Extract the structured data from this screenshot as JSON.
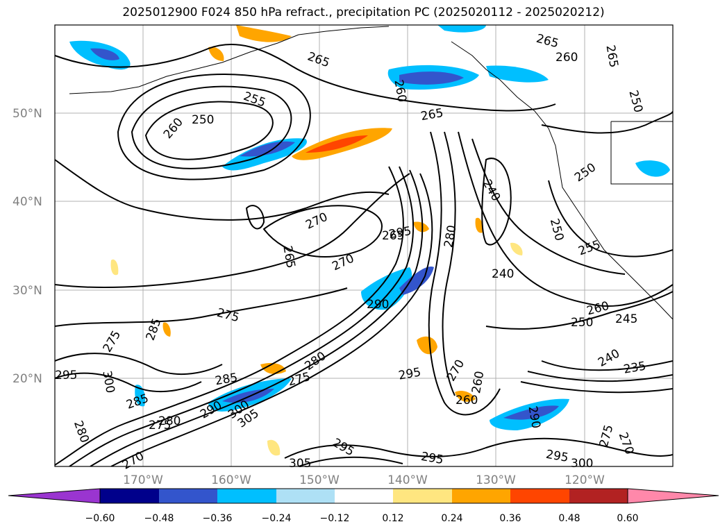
{
  "title": "2025012900 F024 850 hPa refract., precipitation PC (2025020112 - 2025020212)",
  "map": {
    "lon_range": [
      -180,
      -110
    ],
    "lat_range": [
      10,
      60
    ],
    "lat_ticks": [
      "50°N",
      "40°N",
      "30°N",
      "20°N"
    ],
    "lon_ticks": [
      "170°W",
      "160°W",
      "150°W",
      "140°W",
      "130°W",
      "120°W"
    ],
    "grid": true,
    "contour_labels": [
      "265",
      "260",
      "265",
      "255",
      "250",
      "260",
      "265",
      "250",
      "250",
      "240",
      "260",
      "265",
      "270",
      "265",
      "270",
      "275",
      "240",
      "280",
      "290",
      "275",
      "285",
      "300",
      "295",
      "280",
      "280",
      "275",
      "285",
      "275",
      "290",
      "280",
      "285",
      "300",
      "305",
      "270",
      "295",
      "295",
      "305",
      "295",
      "295",
      "270",
      "260",
      "260",
      "290",
      "255",
      "260",
      "250",
      "245",
      "240",
      "235",
      "275",
      "270",
      "295",
      "300",
      "265",
      "250"
    ]
  },
  "colorbar": {
    "tick_labels": [
      "−0.60",
      "−0.48",
      "−0.36",
      "−0.24",
      "−0.12",
      "0.12",
      "0.24",
      "0.36",
      "0.48",
      "0.60"
    ],
    "colors": [
      "#9a35d0",
      "#00008b",
      "#3355cc",
      "#00bfff",
      "#aee0f5",
      "#ffffff",
      "#ffe680",
      "#ffa500",
      "#ff4500",
      "#b22222",
      "#ff88aa"
    ]
  }
}
